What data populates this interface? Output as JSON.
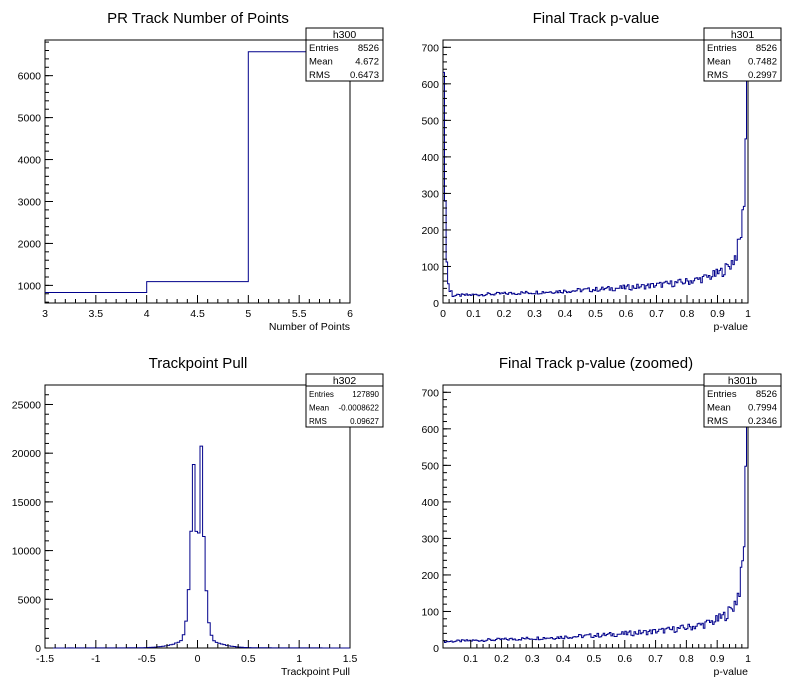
{
  "chart_data": [
    {
      "type": "histogram",
      "title": "PR Track Number of Points",
      "xlabel": "Number of Points",
      "ylabel": "",
      "xlim": [
        3,
        6
      ],
      "ylim": [
        580,
        6850
      ],
      "xticks": [
        "3",
        "3.5",
        "4",
        "4.5",
        "5",
        "5.5",
        "6"
      ],
      "yticks": [
        "1000",
        "2000",
        "3000",
        "4000",
        "5000",
        "6000"
      ],
      "bins": [
        {
          "x": [
            3,
            4
          ],
          "y": 830
        },
        {
          "x": [
            4,
            5
          ],
          "y": 1090
        },
        {
          "x": [
            5,
            6
          ],
          "y": 6570
        }
      ],
      "stats": {
        "name": "h300",
        "entries_label": "Entries",
        "entries": "8526",
        "mean_label": "Mean",
        "mean": "4.672",
        "rms_label": "RMS",
        "rms": "0.6473"
      }
    },
    {
      "type": "histogram",
      "title": "Final Track p-value",
      "xlabel": "p-value",
      "ylabel": "",
      "xlim": [
        0,
        1
      ],
      "ylim": [
        0,
        720
      ],
      "xticks": [
        "0",
        "0.1",
        "0.2",
        "0.3",
        "0.4",
        "0.5",
        "0.6",
        "0.7",
        "0.8",
        "0.9",
        "1"
      ],
      "yticks": [
        "0",
        "100",
        "200",
        "300",
        "400",
        "500",
        "600",
        "700"
      ],
      "nbins": 200,
      "stats": {
        "name": "h301",
        "entries_label": "Entries",
        "entries": "8526",
        "mean_label": "Mean",
        "mean": "0.7482",
        "rms_label": "RMS",
        "rms": "0.2997"
      }
    },
    {
      "type": "histogram",
      "title": "Trackpoint Pull",
      "xlabel": "Trackpoint Pull",
      "ylabel": "",
      "xlim": [
        -1.5,
        1.5
      ],
      "ylim": [
        0,
        27000
      ],
      "xticks": [
        "-1.5",
        "-1",
        "-0.5",
        "0",
        "0.5",
        "1",
        "1.5"
      ],
      "yticks": [
        "0",
        "5000",
        "10000",
        "15000",
        "20000",
        "25000"
      ],
      "nbins": 120,
      "stats": {
        "name": "h302",
        "entries_label": "Entries",
        "entries": "127890",
        "mean_label": "Mean",
        "mean": "-0.0008622",
        "rms_label": "RMS",
        "rms": "0.09627"
      }
    },
    {
      "type": "histogram",
      "title": "Final Track p-value (zoomed)",
      "xlabel": "p-value",
      "ylabel": "",
      "xlim": [
        0.01,
        1
      ],
      "ylim": [
        0,
        720
      ],
      "xticks": [
        "0.1",
        "0.2",
        "0.3",
        "0.4",
        "0.5",
        "0.6",
        "0.7",
        "0.8",
        "0.9",
        "1"
      ],
      "yticks": [
        "0",
        "100",
        "200",
        "300",
        "400",
        "500",
        "600",
        "700"
      ],
      "nbins": 198,
      "stats": {
        "name": "h301b",
        "entries_label": "Entries",
        "entries": "8526",
        "mean_label": "Mean",
        "mean": "0.7994",
        "rms_label": "RMS",
        "rms": "0.2346"
      }
    }
  ],
  "style": {
    "line_color": "#00008b",
    "axis_color": "#000000",
    "background": "#ffffff"
  }
}
